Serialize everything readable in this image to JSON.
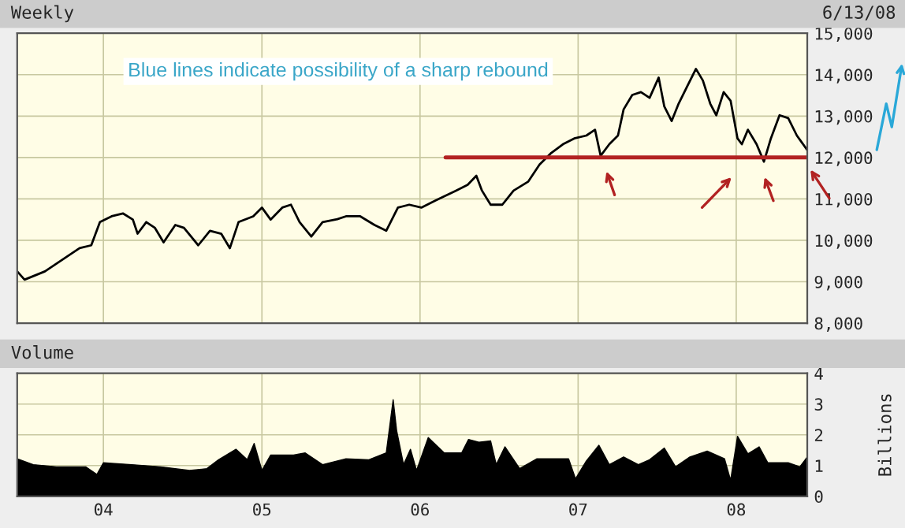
{
  "chart_data": [
    {
      "type": "line",
      "title": "Weekly",
      "annotations": [
        "6/13/08",
        {
          "text": "Blue lines indicate possibility of a sharp rebound"
        }
      ],
      "grid": true,
      "legend": false,
      "tick_labels": "y",
      "marker": "none",
      "line_style": "solid",
      "xlim": [
        "2003-06-16",
        "2008-06-13"
      ],
      "xticks": [
        {
          "value": "2004-01-01",
          "label": null
        },
        {
          "value": "2005-01-01",
          "label": null
        },
        {
          "value": "2006-01-01",
          "label": null
        },
        {
          "value": "2007-01-01",
          "label": null
        },
        {
          "value": "2008-01-01",
          "label": null
        }
      ],
      "ylim": [
        8000,
        15000
      ],
      "yticks": [
        {
          "value": 8000,
          "label": "8,000"
        },
        {
          "value": 9000,
          "label": "9,000"
        },
        {
          "value": 10000,
          "label": "10,000"
        },
        {
          "value": 11000,
          "label": "11,000"
        },
        {
          "value": 12000,
          "label": "12,000"
        },
        {
          "value": 13000,
          "label": "13,000"
        },
        {
          "value": 14000,
          "label": "14,000"
        },
        {
          "value": 15000,
          "label": "15,000"
        }
      ],
      "series": [
        {
          "color": "#000000",
          "x": [
            "2003-06-16",
            "2003-07-03",
            "2003-08-19",
            "2003-09-28",
            "2003-11-07",
            "2003-12-04",
            "2003-12-24",
            "2004-01-20",
            "2004-02-15",
            "2004-03-09",
            "2004-03-20",
            "2004-04-09",
            "2004-04-29",
            "2004-05-19",
            "2004-06-15",
            "2004-07-05",
            "2004-08-07",
            "2004-09-03",
            "2004-09-29",
            "2004-10-19",
            "2004-11-08",
            "2004-12-12",
            "2005-01-01",
            "2005-01-21",
            "2005-02-17",
            "2005-03-09",
            "2005-03-29",
            "2005-04-25",
            "2005-05-21",
            "2005-06-24",
            "2005-07-14",
            "2005-08-16",
            "2005-09-18",
            "2005-10-15",
            "2005-11-11",
            "2005-12-07",
            "2006-01-04",
            "2006-02-13",
            "2006-03-25",
            "2006-04-21",
            "2006-05-11",
            "2006-05-24",
            "2006-06-13",
            "2006-07-10",
            "2006-08-05",
            "2006-09-08",
            "2006-10-04",
            "2006-10-31",
            "2006-11-27",
            "2006-12-23",
            "2007-01-20",
            "2007-02-09",
            "2007-02-22",
            "2007-03-14",
            "2007-04-03",
            "2007-04-16",
            "2007-05-06",
            "2007-05-26",
            "2007-06-15",
            "2007-07-06",
            "2007-07-19",
            "2007-08-05",
            "2007-08-21",
            "2007-09-10",
            "2007-09-30",
            "2007-10-16",
            "2007-11-02",
            "2007-11-16",
            "2007-12-03",
            "2007-12-19",
            "2008-01-04",
            "2008-01-14",
            "2008-01-28",
            "2008-02-17",
            "2008-03-05",
            "2008-03-21",
            "2008-04-10",
            "2008-04-30",
            "2008-05-20",
            "2008-06-13"
          ],
          "values": [
            9250,
            9050,
            9250,
            9530,
            9810,
            9880,
            10440,
            10580,
            10650,
            10500,
            10160,
            10440,
            10300,
            9950,
            10370,
            10300,
            9880,
            10230,
            10160,
            9810,
            10440,
            10580,
            10790,
            10500,
            10790,
            10860,
            10440,
            10090,
            10440,
            10510,
            10580,
            10580,
            10370,
            10230,
            10790,
            10860,
            10790,
            11000,
            11200,
            11340,
            11560,
            11200,
            10860,
            10860,
            11200,
            11420,
            11830,
            12110,
            12320,
            12460,
            12530,
            12670,
            12040,
            12320,
            12530,
            13160,
            13510,
            13580,
            13440,
            13930,
            13230,
            12880,
            13300,
            13720,
            14140,
            13860,
            13300,
            13020,
            13580,
            13370,
            12460,
            12320,
            12670,
            12320,
            11900,
            12460,
            13020,
            12950,
            12530,
            12180
          ]
        },
        {
          "color": "#b22222",
          "x": [
            "2006-03-01",
            "2008-06-13"
          ],
          "values": [
            12000,
            12000
          ]
        }
      ]
    },
    {
      "type": "area",
      "title": "Volume",
      "y2label": "Billions",
      "grid": true,
      "legend": false,
      "xlim": [
        "2003-06-16",
        "2008-06-13"
      ],
      "xticks": [
        {
          "value": "2004-01-01",
          "label": "04"
        },
        {
          "value": "2005-01-01",
          "label": "05"
        },
        {
          "value": "2006-01-01",
          "label": "06"
        },
        {
          "value": "2007-01-01",
          "label": "07"
        },
        {
          "value": "2008-01-01",
          "label": "08"
        }
      ],
      "ylim": [
        0,
        4
      ],
      "yticks": [
        0,
        1,
        2,
        3,
        4
      ],
      "series": [
        {
          "color": "#000000",
          "x": [
            "2003-06-16",
            "2003-07-23",
            "2003-09-15",
            "2003-11-21",
            "2003-12-17",
            "2004-01-01",
            "2004-03-06",
            "2004-05-12",
            "2004-07-18",
            "2004-08-27",
            "2004-09-23",
            "2004-11-02",
            "2004-11-28",
            "2004-12-14",
            "2005-01-01",
            "2005-01-21",
            "2005-03-15",
            "2005-04-11",
            "2005-05-21",
            "2005-07-14",
            "2005-09-05",
            "2005-10-15",
            "2005-10-31",
            "2005-11-08",
            "2005-11-24",
            "2005-12-10",
            "2005-12-24",
            "2006-01-20",
            "2006-02-26",
            "2006-04-07",
            "2006-04-23",
            "2006-05-17",
            "2006-06-13",
            "2006-06-26",
            "2006-07-16",
            "2006-08-19",
            "2006-09-28",
            "2006-11-07",
            "2006-12-10",
            "2006-12-26",
            "2007-01-20",
            "2007-02-18",
            "2007-03-14",
            "2007-04-16",
            "2007-05-20",
            "2007-06-15",
            "2007-07-19",
            "2007-08-14",
            "2007-09-16",
            "2007-10-26",
            "2007-12-05",
            "2007-12-19",
            "2008-01-04",
            "2008-01-28",
            "2008-02-23",
            "2008-03-14",
            "2008-04-30",
            "2008-05-27",
            "2008-06-13"
          ],
          "values": [
            1.22,
            1.03,
            0.96,
            0.96,
            0.71,
            1.09,
            1.03,
            0.96,
            0.84,
            0.9,
            1.19,
            1.53,
            1.19,
            1.72,
            0.84,
            1.34,
            1.34,
            1.41,
            1.03,
            1.22,
            1.19,
            1.41,
            3.14,
            2.14,
            1.03,
            1.53,
            0.84,
            1.91,
            1.41,
            1.41,
            1.85,
            1.76,
            1.8,
            1.03,
            1.61,
            0.9,
            1.22,
            1.22,
            1.22,
            0.57,
            1.15,
            1.66,
            1.03,
            1.28,
            1.03,
            1.19,
            1.57,
            0.96,
            1.28,
            1.47,
            1.22,
            0.52,
            1.95,
            1.38,
            1.61,
            1.09,
            1.09,
            0.96,
            1.28
          ]
        }
      ]
    }
  ]
}
